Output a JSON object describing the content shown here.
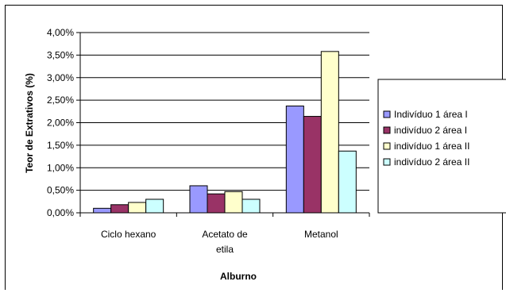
{
  "chart_data": {
    "type": "bar",
    "categories": [
      "Ciclo hexano",
      "Acetato de etila",
      "Metanol"
    ],
    "category_lines": [
      [
        "Ciclo hexano"
      ],
      [
        "Acetato de",
        "etila"
      ],
      [
        "Metanol"
      ]
    ],
    "series": [
      {
        "name": "Indivíduo 1 área I",
        "color": "#9999ff",
        "values": [
          0.1,
          0.6,
          2.37
        ]
      },
      {
        "name": "indivíduo 2 área I",
        "color": "#993366",
        "values": [
          0.18,
          0.42,
          2.14
        ]
      },
      {
        "name": "indivíduo 1 área II",
        "color": "#ffffcc",
        "values": [
          0.23,
          0.47,
          3.58
        ]
      },
      {
        "name": "indivíduo 2  área II",
        "color": "#ccffff",
        "values": [
          0.3,
          0.3,
          1.37
        ]
      }
    ],
    "xlabel": "Alburno",
    "ylabel": "Teor de Extrativos (%)",
    "ylim": [
      0,
      4
    ],
    "yticks": [
      "0,00%",
      "0,50%",
      "1,00%",
      "1,50%",
      "2,00%",
      "2,50%",
      "3,00%",
      "3,50%",
      "4,00%"
    ],
    "ytick_values": [
      0,
      0.5,
      1,
      1.5,
      2,
      2.5,
      3,
      3.5,
      4
    ],
    "grid": true,
    "legend_position": "right"
  }
}
